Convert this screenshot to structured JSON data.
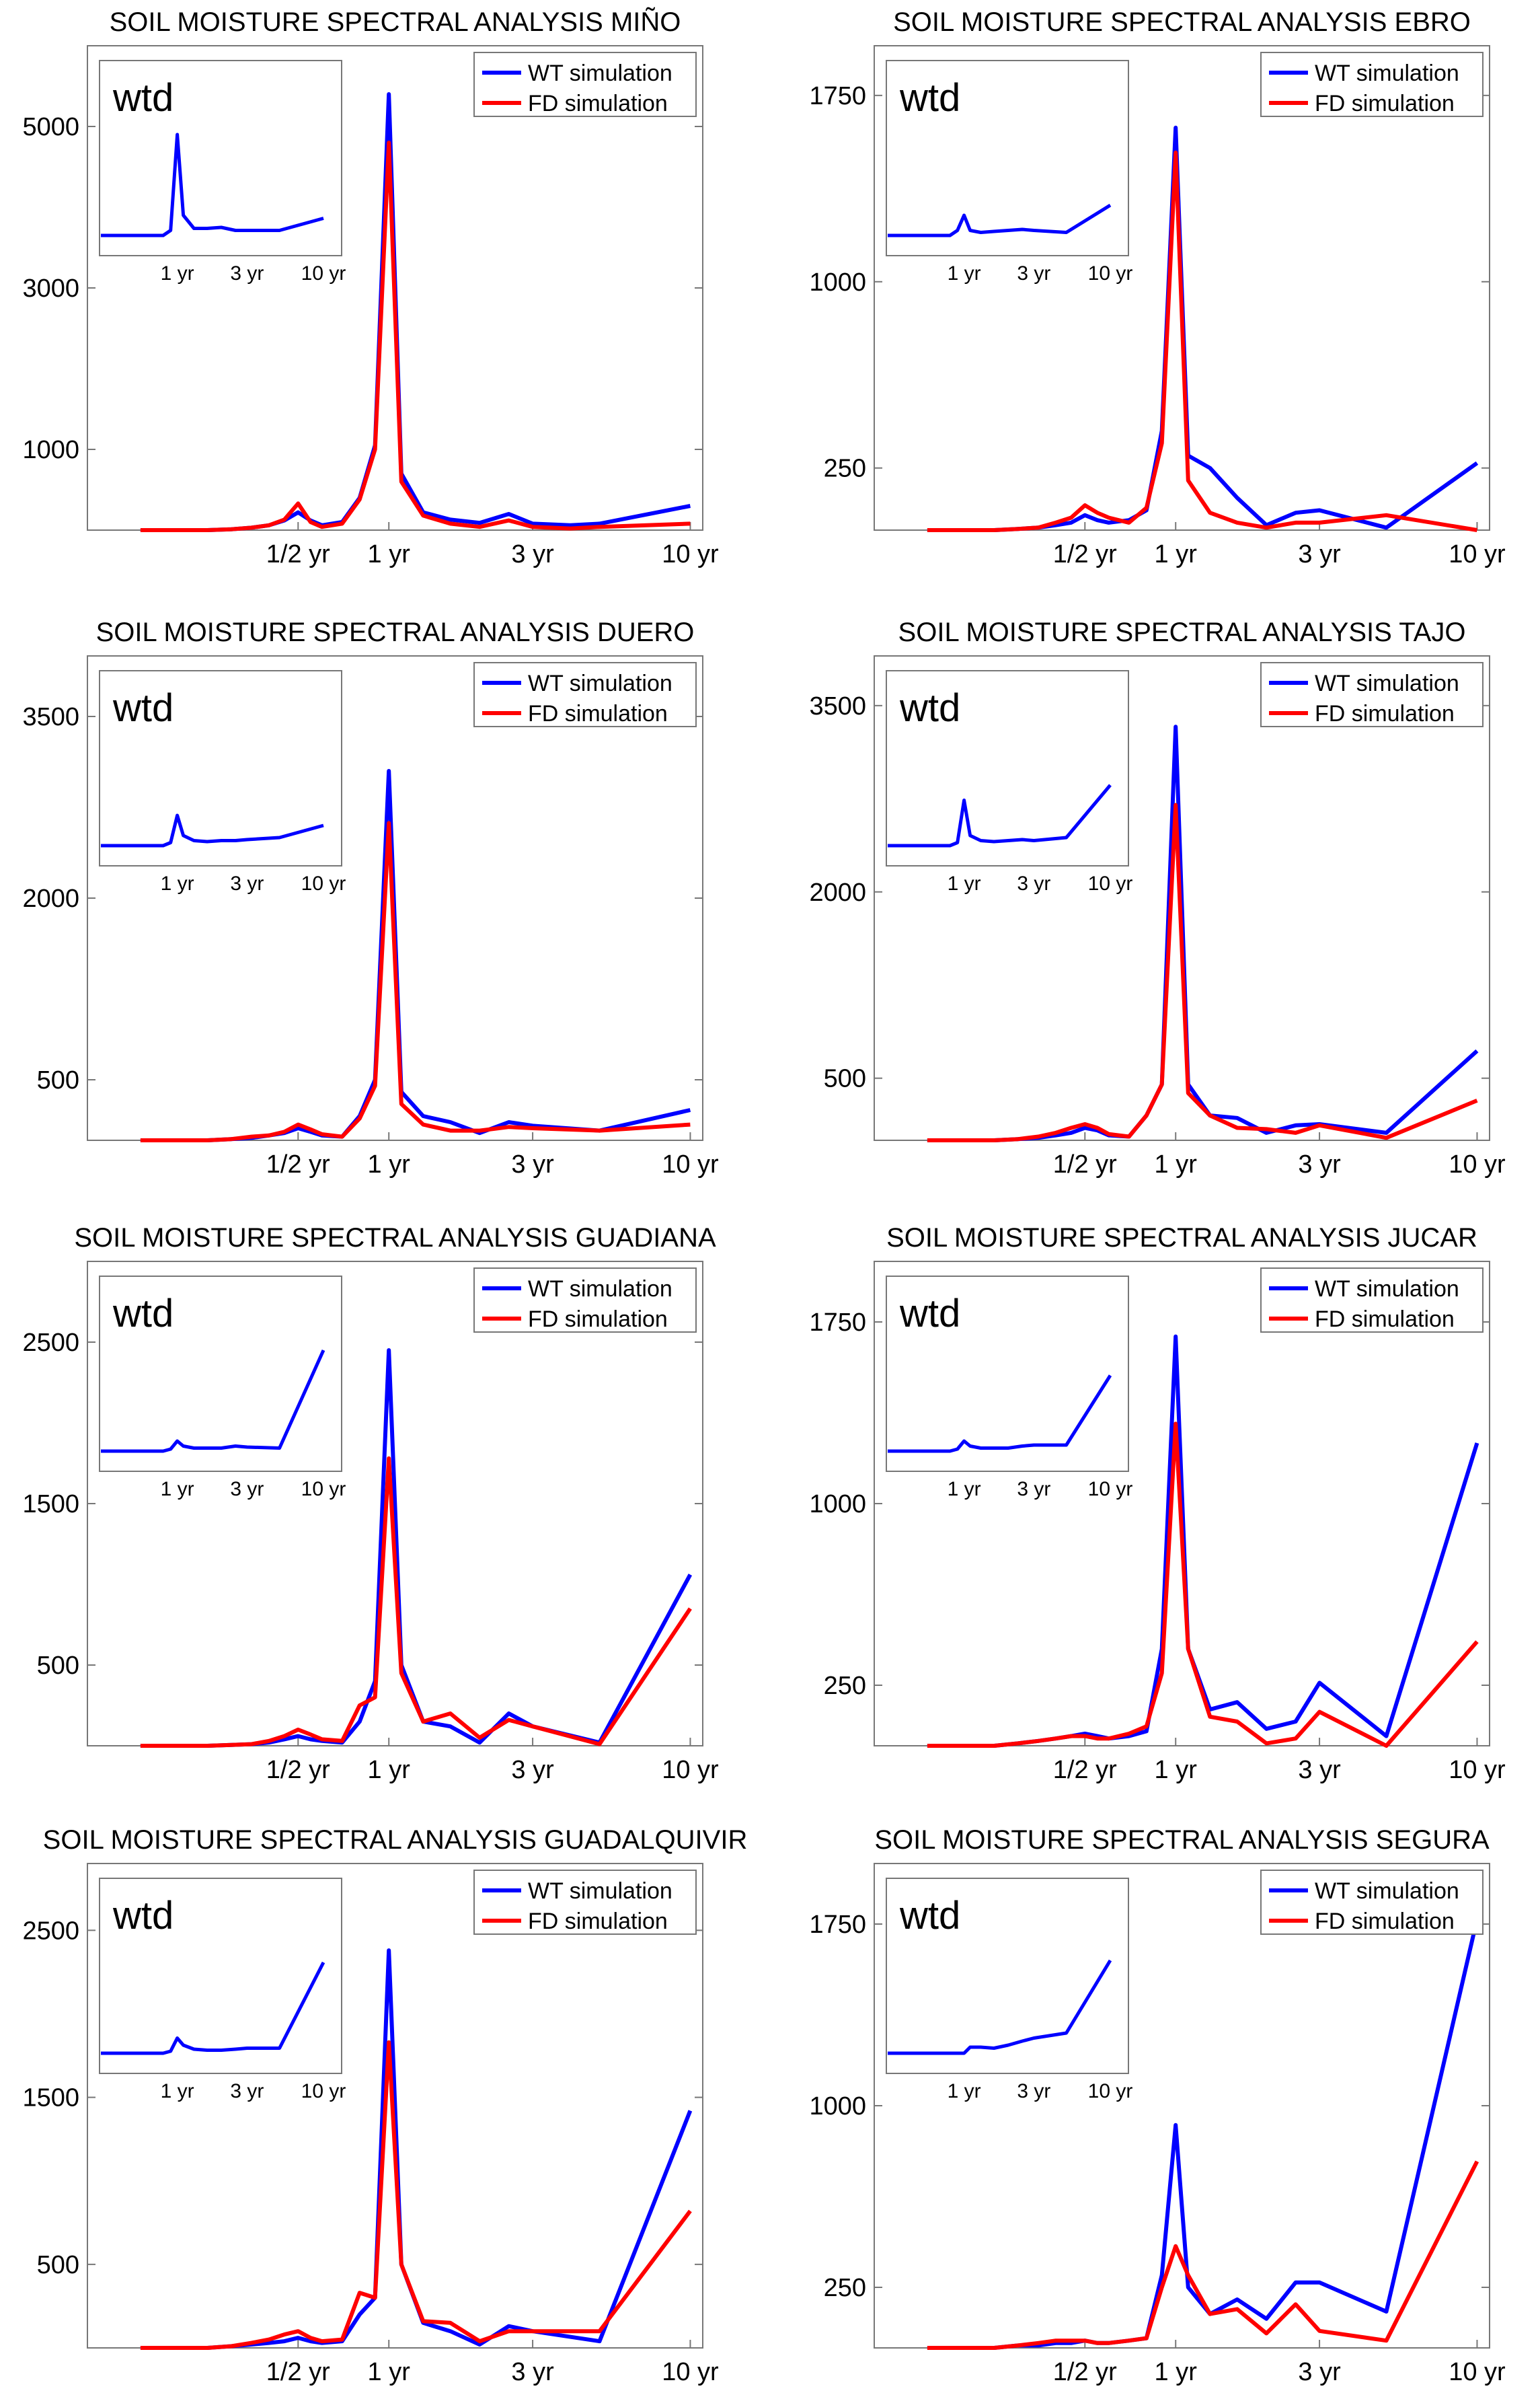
{
  "figure": {
    "legend": {
      "wt_label": "WT simulation",
      "fd_label": "FD simulation",
      "wt_color": "#0000ff",
      "fd_color": "#ff0000"
    },
    "inset_label": "wtd",
    "x_tick_labels": [
      "1/2 yr",
      "1 yr",
      "3 yr",
      "10 yr"
    ],
    "inset_tick_labels": [
      "1 yr",
      "3 yr",
      "10 yr"
    ]
  },
  "chart_data": [
    {
      "type": "line",
      "title": "SOIL MOISTURE SPECTRAL ANALYSIS MIÑO",
      "xlabel": "",
      "ylabel": "",
      "ylim": [
        0,
        6000
      ],
      "yticks": [
        1000,
        3000,
        5000
      ],
      "x_period_years": [
        0.15,
        0.2,
        0.25,
        0.3,
        0.35,
        0.4,
        0.45,
        0.5,
        0.55,
        0.6,
        0.7,
        0.8,
        0.9,
        1.0,
        1.1,
        1.3,
        1.6,
        2.0,
        2.5,
        3.0,
        4.0,
        5.0,
        10.0
      ],
      "series": [
        {
          "name": "WT simulation",
          "color": "#0000ff",
          "values": [
            0,
            0,
            0,
            10,
            30,
            60,
            120,
            220,
            120,
            60,
            100,
            400,
            1050,
            5400,
            700,
            220,
            130,
            90,
            200,
            80,
            60,
            80,
            300
          ]
        },
        {
          "name": "FD simulation",
          "color": "#ff0000",
          "values": [
            0,
            0,
            0,
            10,
            30,
            60,
            130,
            330,
            100,
            40,
            80,
            380,
            1000,
            4800,
            600,
            180,
            80,
            40,
            120,
            40,
            20,
            40,
            80
          ]
        }
      ],
      "inset": {
        "label": "wtd",
        "x_period_years": [
          0.5,
          0.8,
          0.9,
          1.0,
          1.1,
          1.3,
          1.6,
          2.0,
          2.5,
          3.0,
          5.0,
          10.0
        ],
        "values": [
          0,
          0,
          0.05,
          1.0,
          0.2,
          0.07,
          0.07,
          0.08,
          0.05,
          0.05,
          0.05,
          0.17
        ]
      }
    },
    {
      "type": "line",
      "title": "SOIL MOISTURE SPECTRAL ANALYSIS EBRO",
      "xlabel": "",
      "ylabel": "",
      "ylim": [
        0,
        1950
      ],
      "yticks": [
        250,
        1000,
        1750
      ],
      "x_period_years": [
        0.15,
        0.2,
        0.25,
        0.3,
        0.35,
        0.4,
        0.45,
        0.5,
        0.55,
        0.6,
        0.7,
        0.8,
        0.9,
        1.0,
        1.1,
        1.3,
        1.6,
        2.0,
        2.5,
        3.0,
        5.0,
        10.0
      ],
      "series": [
        {
          "name": "WT simulation",
          "color": "#0000ff",
          "values": [
            0,
            0,
            0,
            5,
            10,
            20,
            30,
            60,
            40,
            30,
            40,
            80,
            400,
            1620,
            300,
            250,
            130,
            20,
            70,
            80,
            10,
            270
          ]
        },
        {
          "name": "FD simulation",
          "color": "#ff0000",
          "values": [
            0,
            0,
            0,
            5,
            10,
            30,
            50,
            100,
            70,
            50,
            30,
            90,
            350,
            1520,
            200,
            70,
            30,
            10,
            30,
            30,
            60,
            0
          ]
        }
      ],
      "inset": {
        "label": "wtd",
        "x_period_years": [
          0.5,
          0.8,
          0.9,
          1.0,
          1.1,
          1.3,
          1.6,
          2.0,
          2.5,
          3.0,
          5.0,
          10.0
        ],
        "values": [
          0,
          0,
          0.05,
          0.2,
          0.05,
          0.03,
          0.04,
          0.05,
          0.06,
          0.05,
          0.03,
          0.3
        ]
      }
    },
    {
      "type": "line",
      "title": "SOIL MOISTURE SPECTRAL ANALYSIS DUERO",
      "xlabel": "",
      "ylabel": "",
      "ylim": [
        0,
        4000
      ],
      "yticks": [
        500,
        2000,
        3500
      ],
      "x_period_years": [
        0.15,
        0.2,
        0.25,
        0.3,
        0.35,
        0.4,
        0.45,
        0.5,
        0.55,
        0.6,
        0.7,
        0.8,
        0.9,
        1.0,
        1.1,
        1.3,
        1.6,
        2.0,
        2.5,
        3.0,
        5.0,
        10.0
      ],
      "series": [
        {
          "name": "WT simulation",
          "color": "#0000ff",
          "values": [
            0,
            0,
            0,
            10,
            20,
            40,
            60,
            100,
            70,
            40,
            30,
            200,
            500,
            3050,
            400,
            200,
            150,
            60,
            150,
            120,
            80,
            250
          ]
        },
        {
          "name": "FD simulation",
          "color": "#ff0000",
          "values": [
            0,
            0,
            0,
            10,
            30,
            40,
            70,
            130,
            90,
            50,
            30,
            180,
            450,
            2620,
            300,
            130,
            80,
            80,
            110,
            100,
            80,
            130
          ]
        }
      ],
      "inset": {
        "label": "wtd",
        "x_period_years": [
          0.5,
          0.8,
          0.9,
          1.0,
          1.1,
          1.3,
          1.6,
          2.0,
          2.5,
          3.0,
          5.0,
          10.0
        ],
        "values": [
          0,
          0,
          0.03,
          0.3,
          0.1,
          0.05,
          0.04,
          0.05,
          0.05,
          0.06,
          0.08,
          0.2
        ]
      }
    },
    {
      "type": "line",
      "title": "SOIL MOISTURE SPECTRAL ANALYSIS TAJO",
      "xlabel": "",
      "ylabel": "",
      "ylim": [
        0,
        3900
      ],
      "yticks": [
        500,
        2000,
        3500
      ],
      "x_period_years": [
        0.15,
        0.2,
        0.25,
        0.3,
        0.35,
        0.4,
        0.45,
        0.5,
        0.55,
        0.6,
        0.7,
        0.8,
        0.9,
        1.0,
        1.1,
        1.3,
        1.6,
        2.0,
        2.5,
        3.0,
        5.0,
        10.0
      ],
      "series": [
        {
          "name": "WT simulation",
          "color": "#0000ff",
          "values": [
            0,
            0,
            0,
            10,
            20,
            40,
            60,
            100,
            80,
            40,
            30,
            200,
            450,
            3330,
            450,
            200,
            180,
            60,
            120,
            130,
            60,
            720
          ]
        },
        {
          "name": "FD simulation",
          "color": "#ff0000",
          "values": [
            0,
            0,
            0,
            10,
            30,
            60,
            100,
            130,
            100,
            50,
            30,
            200,
            450,
            2700,
            380,
            200,
            100,
            90,
            60,
            120,
            20,
            320
          ]
        }
      ],
      "inset": {
        "label": "wtd",
        "x_period_years": [
          0.5,
          0.8,
          0.9,
          1.0,
          1.1,
          1.3,
          1.6,
          2.0,
          2.5,
          3.0,
          5.0,
          10.0
        ],
        "values": [
          0,
          0,
          0.03,
          0.45,
          0.1,
          0.05,
          0.04,
          0.05,
          0.06,
          0.05,
          0.08,
          0.6
        ]
      }
    },
    {
      "type": "line",
      "title": "SOIL MOISTURE SPECTRAL ANALYSIS GUADIANA",
      "xlabel": "",
      "ylabel": "",
      "ylim": [
        0,
        3000
      ],
      "yticks": [
        500,
        1500,
        2500
      ],
      "x_period_years": [
        0.15,
        0.2,
        0.25,
        0.3,
        0.35,
        0.4,
        0.45,
        0.5,
        0.55,
        0.6,
        0.7,
        0.8,
        0.9,
        1.0,
        1.1,
        1.3,
        1.6,
        2.0,
        2.5,
        3.0,
        5.0,
        10.0
      ],
      "series": [
        {
          "name": "WT simulation",
          "color": "#0000ff",
          "values": [
            0,
            0,
            0,
            5,
            10,
            20,
            40,
            60,
            40,
            30,
            20,
            150,
            400,
            2450,
            500,
            150,
            120,
            20,
            200,
            120,
            20,
            1060
          ]
        },
        {
          "name": "FD simulation",
          "color": "#ff0000",
          "values": [
            0,
            0,
            0,
            5,
            10,
            30,
            60,
            100,
            70,
            40,
            30,
            250,
            300,
            1780,
            450,
            150,
            200,
            50,
            160,
            120,
            10,
            850
          ]
        }
      ],
      "inset": {
        "label": "wtd",
        "x_period_years": [
          0.5,
          0.8,
          0.9,
          1.0,
          1.1,
          1.3,
          1.6,
          2.0,
          2.5,
          3.0,
          5.0,
          10.0
        ],
        "values": [
          0,
          0,
          0.02,
          0.1,
          0.05,
          0.03,
          0.03,
          0.03,
          0.05,
          0.04,
          0.03,
          1.0
        ]
      }
    },
    {
      "type": "line",
      "title": "SOIL MOISTURE SPECTRAL ANALYSIS JUCAR",
      "xlabel": "",
      "ylabel": "",
      "ylim": [
        0,
        2000
      ],
      "yticks": [
        250,
        1000,
        1750
      ],
      "x_period_years": [
        0.15,
        0.2,
        0.25,
        0.3,
        0.35,
        0.4,
        0.45,
        0.5,
        0.55,
        0.6,
        0.7,
        0.8,
        0.9,
        1.0,
        1.1,
        1.3,
        1.6,
        2.0,
        2.5,
        3.0,
        5.0,
        10.0
      ],
      "series": [
        {
          "name": "WT simulation",
          "color": "#0000ff",
          "values": [
            0,
            0,
            0,
            10,
            20,
            30,
            40,
            50,
            40,
            30,
            40,
            60,
            400,
            1690,
            400,
            150,
            180,
            70,
            100,
            260,
            40,
            1250
          ]
        },
        {
          "name": "FD simulation",
          "color": "#ff0000",
          "values": [
            0,
            0,
            0,
            10,
            20,
            30,
            40,
            40,
            30,
            30,
            50,
            80,
            300,
            1330,
            400,
            120,
            100,
            10,
            30,
            140,
            0,
            430
          ]
        }
      ],
      "inset": {
        "label": "wtd",
        "x_period_years": [
          0.5,
          0.8,
          0.9,
          1.0,
          1.1,
          1.3,
          1.6,
          2.0,
          2.5,
          3.0,
          5.0,
          10.0
        ],
        "values": [
          0,
          0,
          0.02,
          0.1,
          0.05,
          0.03,
          0.03,
          0.03,
          0.05,
          0.06,
          0.06,
          0.75
        ]
      }
    },
    {
      "type": "line",
      "title": "SOIL MOISTURE SPECTRAL ANALYSIS GUADALQUIVIR",
      "xlabel": "",
      "ylabel": "",
      "ylim": [
        0,
        2900
      ],
      "yticks": [
        500,
        1500,
        2500
      ],
      "x_period_years": [
        0.15,
        0.2,
        0.25,
        0.3,
        0.35,
        0.4,
        0.45,
        0.5,
        0.55,
        0.6,
        0.7,
        0.8,
        0.9,
        1.0,
        1.1,
        1.3,
        1.6,
        2.0,
        2.5,
        3.0,
        5.0,
        10.0
      ],
      "series": [
        {
          "name": "WT simulation",
          "color": "#0000ff",
          "values": [
            0,
            0,
            0,
            10,
            20,
            30,
            40,
            60,
            40,
            30,
            40,
            200,
            300,
            2380,
            500,
            150,
            100,
            20,
            130,
            100,
            40,
            1420
          ]
        },
        {
          "name": "FD simulation",
          "color": "#ff0000",
          "values": [
            0,
            0,
            0,
            10,
            30,
            50,
            80,
            100,
            60,
            40,
            50,
            330,
            300,
            1830,
            500,
            160,
            150,
            40,
            100,
            100,
            100,
            820
          ]
        }
      ],
      "inset": {
        "label": "wtd",
        "x_period_years": [
          0.5,
          0.8,
          0.9,
          1.0,
          1.1,
          1.3,
          1.6,
          2.0,
          2.5,
          3.0,
          5.0,
          10.0
        ],
        "values": [
          0,
          0,
          0.02,
          0.15,
          0.08,
          0.04,
          0.03,
          0.03,
          0.04,
          0.05,
          0.05,
          0.9
        ]
      }
    },
    {
      "type": "line",
      "title": "SOIL MOISTURE SPECTRAL ANALYSIS SEGURA",
      "xlabel": "",
      "ylabel": "",
      "ylim": [
        0,
        2000
      ],
      "yticks": [
        250,
        1000,
        1750
      ],
      "x_period_years": [
        0.15,
        0.2,
        0.25,
        0.3,
        0.35,
        0.4,
        0.45,
        0.5,
        0.55,
        0.6,
        0.7,
        0.8,
        0.9,
        1.0,
        1.1,
        1.3,
        1.6,
        2.0,
        2.5,
        3.0,
        5.0,
        10.0
      ],
      "series": [
        {
          "name": "WT simulation",
          "color": "#0000ff",
          "values": [
            0,
            0,
            0,
            10,
            10,
            20,
            20,
            30,
            20,
            20,
            30,
            40,
            300,
            920,
            250,
            140,
            200,
            120,
            270,
            270,
            150,
            1770
          ]
        },
        {
          "name": "FD simulation",
          "color": "#ff0000",
          "values": [
            0,
            0,
            0,
            10,
            20,
            30,
            30,
            30,
            20,
            20,
            30,
            40,
            250,
            420,
            300,
            140,
            160,
            60,
            180,
            70,
            30,
            770
          ]
        }
      ],
      "inset": {
        "label": "wtd",
        "x_period_years": [
          0.5,
          0.8,
          0.9,
          1.0,
          1.1,
          1.3,
          1.6,
          2.0,
          2.5,
          3.0,
          5.0,
          10.0
        ],
        "values": [
          0,
          0,
          0.0,
          0.0,
          0.06,
          0.06,
          0.05,
          0.08,
          0.12,
          0.15,
          0.2,
          0.92
        ]
      }
    }
  ]
}
